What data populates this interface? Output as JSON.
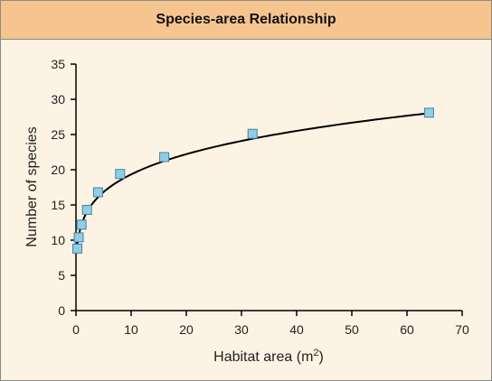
{
  "chart_data": {
    "type": "scatter",
    "title": "Species-area Relationship",
    "xlabel_main": "Habitat area (m",
    "xlabel_sup": "2",
    "xlabel_end": ")",
    "ylabel": "Number of species",
    "xlim": [
      0,
      70
    ],
    "ylim": [
      0,
      35
    ],
    "xticks": [
      "0",
      "10",
      "20",
      "30",
      "40",
      "50",
      "60",
      "70"
    ],
    "yticks": [
      "0",
      "5",
      "10",
      "15",
      "20",
      "25",
      "30",
      "35"
    ],
    "grid": false,
    "legend": "none",
    "marker_color": "#8ecfe8",
    "marker_edge": "#4a7f9c",
    "curve_color": "#000000",
    "points": {
      "x": [
        0.25,
        0.5,
        1,
        2,
        4,
        8,
        16,
        32,
        64
      ],
      "y": [
        8.8,
        10.4,
        12.2,
        14.3,
        16.8,
        19.4,
        21.8,
        25.1,
        28.1
      ]
    },
    "fit": {
      "type": "power",
      "c": 12.2,
      "z": 0.2
    }
  }
}
